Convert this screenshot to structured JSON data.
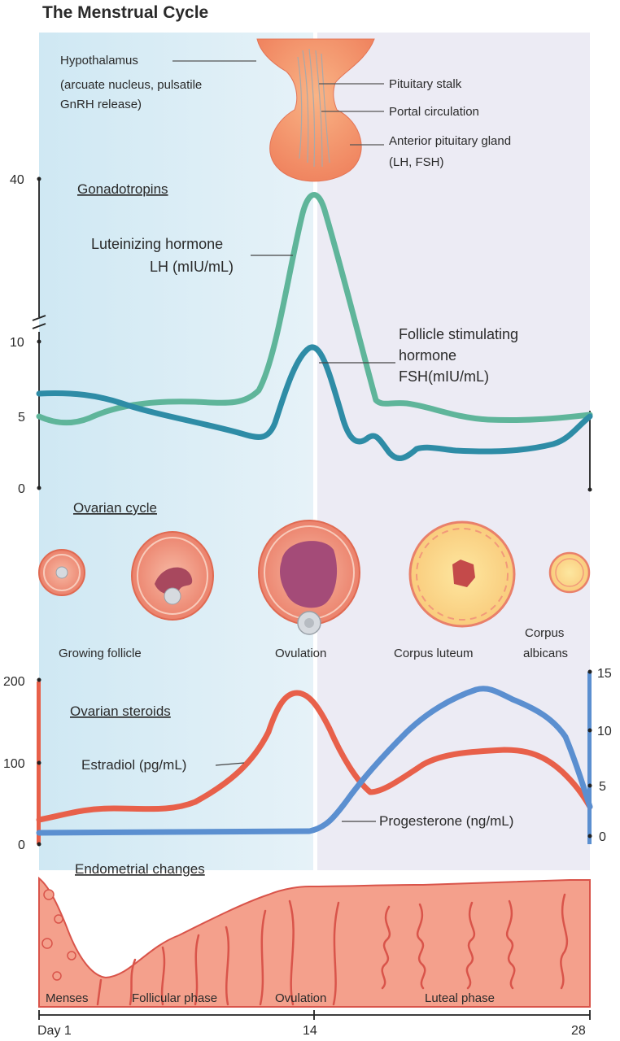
{
  "title": "The Menstrual Cycle",
  "pituitary": {
    "hypothalamus": "Hypothalamus",
    "hypothalamus_note_1": "(arcuate nucleus, pulsatile",
    "hypothalamus_note_2": "GnRH release)",
    "stalk": "Pituitary stalk",
    "portal": "Portal circulation",
    "anterior_1": "Anterior pituitary gland",
    "anterior_2": "(LH, FSH)"
  },
  "gonadotropins": {
    "heading": "Gonadotropins",
    "y_ticks": [
      "40",
      "10",
      "5",
      "0"
    ],
    "lh_label_1": "Luteinizing hormone",
    "lh_label_2": "LH (mIU/mL)",
    "fsh_label_1": "Follicle stimulating",
    "fsh_label_2": "hormone",
    "fsh_label_3": "FSH(mIU/mL)",
    "colors": {
      "lh": "#5fb59a",
      "fsh": "#2e8ca6"
    }
  },
  "ovarian_cycle": {
    "heading": "Ovarian cycle",
    "labels": [
      "Growing follicle",
      "Ovulation",
      "Corpus luteum",
      "Corpus",
      "albicans"
    ]
  },
  "steroids": {
    "heading": "Ovarian steroids",
    "left_ticks": [
      "200",
      "100",
      "0"
    ],
    "right_ticks": [
      "15",
      "10",
      "5",
      "0"
    ],
    "estradiol_label": "Estradiol (pg/mL)",
    "progesterone_label": "Progesterone (ng/mL)",
    "colors": {
      "estradiol": "#e8604a",
      "progesterone": "#5b8fd0"
    }
  },
  "endometrium": {
    "heading": "Endometrial changes",
    "phases": [
      "Menses",
      "Follicular phase",
      "Ovulation",
      "Luteal phase"
    ]
  },
  "x_axis": {
    "ticks": [
      "Day 1",
      "14",
      "28"
    ]
  },
  "colors": {
    "follicular_bg": "#d6ecf5",
    "luteal_bg": "#eceaf4",
    "tissue": "#f4a08c",
    "tissue_dark": "#d9544a"
  }
}
